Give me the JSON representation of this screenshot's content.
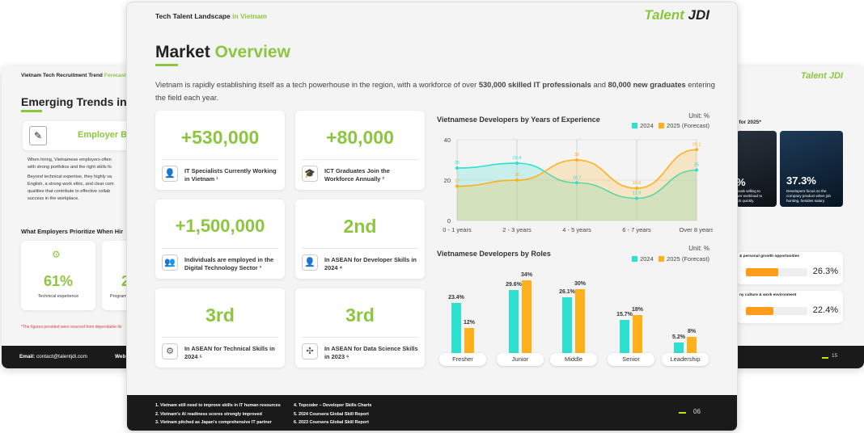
{
  "left_page": {
    "header_title": "Vietnam Tech Recruitment Trend",
    "header_title_accent": "Forecast",
    "heading": "Emerging Trends in T",
    "employer_label": "Employer B",
    "para1": "When hiring, Vietnamese employers often",
    "para1b": "with strong portfolios and the right skills fo",
    "para2": "Beyond technical expertise, they highly va",
    "para2b": "English, a strong work ethic, and clear com",
    "para2c": "qualities that contribute to effective collab",
    "para2d": "success in the workplace.",
    "subheading": "What Employers Prioritize When Hir",
    "stat1_value": "61%",
    "stat1_label": "Technical experience",
    "stat2_value": "2",
    "stat2_label": "Program",
    "footnote": "*The figures provided were sourced from dependable thi",
    "footer_email_label": "Email:",
    "footer_email": "contact@talentjdi.com",
    "footer_web": "Web"
  },
  "right_page": {
    "logo": "Talent JDI",
    "subheading": "ok for 2025*",
    "card1_value": "%",
    "card1_text": "onals willing to\nwer workload to\njob quickly.",
    "card2_value": "37.3%",
    "card2_text": "Developers focus on the company product when job hunting, besides salary.",
    "bar1_label": "& personal growth opportunities",
    "bar1_value": "26.3%",
    "bar1_fill": 0.263,
    "bar2_label": "ny culture & work environment",
    "bar2_value": "22.4%",
    "bar2_fill": 0.224,
    "page_number": "15"
  },
  "main_page": {
    "header_title": "Tech Talent Landscape",
    "header_title_accent": "in Vietnam",
    "logo_main": "Talent",
    "logo_accent": "JDI",
    "heading": "Market",
    "heading_accent": "Overview",
    "intro_pre": "Vietnam is rapidly establishing itself as a tech powerhouse in the region, with a workforce of over",
    "intro_b1": "530,000 skilled IT professionals",
    "intro_mid": "and",
    "intro_b2": "80,000 new graduates",
    "intro_post": "entering",
    "intro_line2": "the field each year.",
    "stats": [
      {
        "value": "+530,000",
        "label": "IT Specialists Currently Working in Vietnam ¹",
        "icon": "person-badge-icon"
      },
      {
        "value": "+80,000",
        "label": "ICT Graduates Join the Workforce Annually ²",
        "icon": "graduation-cap-icon"
      },
      {
        "value": "+1,500,000",
        "label": "Individuals are employed in the Digital Technology Sector ³",
        "icon": "team-icon"
      },
      {
        "value": "2nd",
        "label": "In ASEAN for Developer Skills in 2024 ⁴",
        "icon": "person-badge-icon"
      },
      {
        "value": "3rd",
        "label": "In ASEAN for Technical Skills in 2024 ⁵",
        "icon": "gear-cycle-icon"
      },
      {
        "value": "3rd",
        "label": "In ASEAN for Data Science Skills in 2023 ⁶",
        "icon": "network-icon"
      }
    ],
    "footnotes": [
      "1. Vietnam still need to improve skills in IT human resources",
      "2. Vietnam's AI readiness scores strongly improved",
      "3. Vietnam pitched as Japan's comprehensive IT partner",
      "4. Topcoder – Developer Skills Charts",
      "5. 2024 Coursera Global Skill Report",
      "6. 2023 Coursera Global Skill Report"
    ],
    "page_number": "06"
  },
  "colors": {
    "accent": "#8cc63f",
    "series_2024": "#2ee0cf",
    "series_2025": "#ffb11b",
    "footer": "#1a1a1a"
  },
  "chart_data": [
    {
      "type": "area",
      "title": "Vietnamese Developers by Years of Experience",
      "unit": "Unit: %",
      "categories": [
        "0 - 1 years",
        "2 - 3 years",
        "4 - 5 years",
        "6 - 7 years",
        "Over 8 years"
      ],
      "series": [
        {
          "name": "2024",
          "values": [
            26.0,
            28.4,
            18.7,
            11.0,
            25.0
          ],
          "labels": [
            "26",
            "28.4",
            "18.7",
            "11.0",
            "25"
          ]
        },
        {
          "name": "2025 (Forecast)",
          "values": [
            17.0,
            20.0,
            30.0,
            16.0,
            35.1
          ],
          "labels": [
            "17",
            "20",
            "30",
            "16.0",
            "35.1"
          ]
        }
      ],
      "yticks": [
        0,
        20,
        40
      ],
      "ylim": [
        0,
        40
      ],
      "legend": "top-right"
    },
    {
      "type": "bar",
      "title": "Vietnamese Developers by Roles",
      "unit": "Unit: %",
      "categories": [
        "Fresher",
        "Junior",
        "Middle",
        "Senior",
        "Leadership"
      ],
      "series": [
        {
          "name": "2024",
          "values": [
            23.4,
            29.6,
            26.1,
            15.7,
            5.2
          ],
          "labels": [
            "23.4%",
            "29.6%",
            "26.1%",
            "15.7%",
            "5.2%"
          ]
        },
        {
          "name": "2025 (Forecast)",
          "values": [
            12,
            34,
            30,
            18,
            8
          ],
          "labels": [
            "12%",
            "34%",
            "30%",
            "18%",
            "8%"
          ]
        }
      ],
      "legend": "top-right"
    }
  ]
}
